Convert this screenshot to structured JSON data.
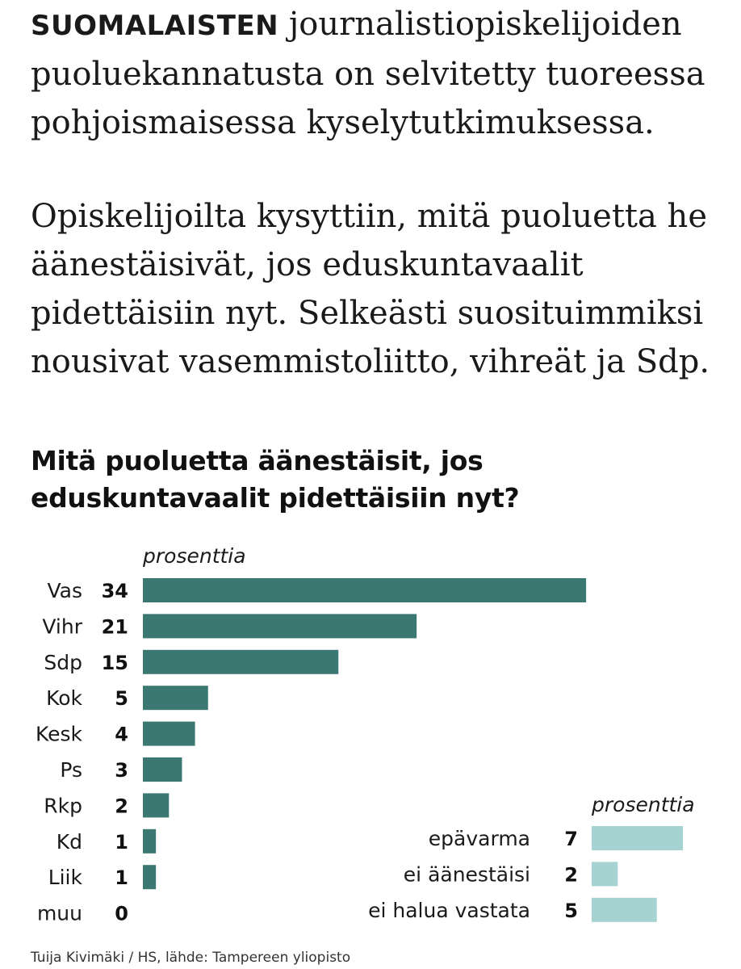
{
  "intro": {
    "lead": "SUOMALAISTEN",
    "p1_rest": " journalistiopiskelijoiden puoluekannatusta on selvitetty tuoreessa pohjoismaisessa kyselytutkimuksessa.",
    "p2": "Opiskelijoilta kysyttiin, mitä puoluetta he äänestäisivät, jos eduskuntavaalit pidettäisiin nyt. Selkeästi suosituimmiksi nousivat vasemmistoliitto, vihreät ja Sdp."
  },
  "chart_title": "Mitä puoluetta äänestäisit, jos eduskuntavaalit pidettäisiin nyt?",
  "source": "Tuija Kivimäki / HS, lähde: Tampereen yliopisto",
  "colors": {
    "primary_bar": "#3a7871",
    "secondary_bar": "#a6d3d2"
  },
  "chart_data": [
    {
      "type": "bar",
      "orientation": "horizontal",
      "unit_label": "prosenttia",
      "categories": [
        "Vas",
        "Vihr",
        "Sdp",
        "Kok",
        "Kesk",
        "Ps",
        "Rkp",
        "Kd",
        "Liik",
        "muu"
      ],
      "values": [
        34,
        21,
        15,
        5,
        4,
        3,
        2,
        1,
        1,
        0
      ]
    },
    {
      "type": "bar",
      "orientation": "horizontal",
      "unit_label": "prosenttia",
      "categories": [
        "epävarma",
        "ei äänestäisi",
        "ei halua vastata"
      ],
      "values": [
        7,
        2,
        5
      ]
    }
  ]
}
